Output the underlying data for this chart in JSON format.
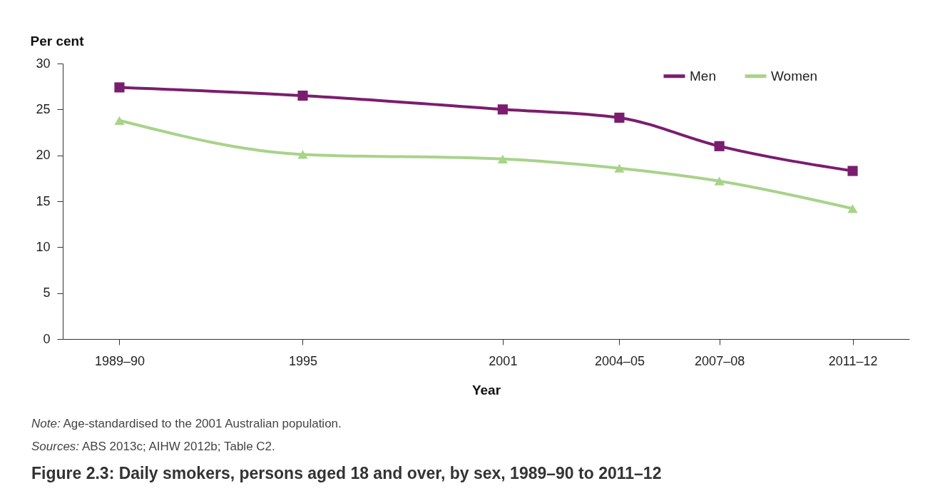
{
  "chart_data": {
    "type": "line",
    "title": "Figure 2.3: Daily smokers, persons aged 18 and over, by sex, 1989–90 to 2011–12",
    "xlabel": "Year",
    "ylabel": "Per cent",
    "x": [
      1989.5,
      1995,
      2001,
      2004.5,
      2007.5,
      2011.5
    ],
    "series": [
      {
        "name": "Men",
        "color": "#7b1d6f",
        "marker": "square",
        "values": [
          27.4,
          26.5,
          25.0,
          24.1,
          21.0,
          18.3
        ]
      },
      {
        "name": "Women",
        "color": "#a8d38a",
        "marker": "triangle",
        "values": [
          23.8,
          20.1,
          19.6,
          18.6,
          17.2,
          14.2
        ]
      }
    ],
    "xlim": [
      1987.8,
      2013.2
    ],
    "xticks": [
      {
        "value": 1989.5,
        "label": "1989–90"
      },
      1995,
      2001,
      {
        "value": 2004.5,
        "label": "2004–05"
      },
      {
        "value": 2007.5,
        "label": "2007–08"
      },
      {
        "value": 2011.5,
        "label": "2011–12"
      }
    ],
    "ylim": [
      0,
      30
    ],
    "yticks": [
      0,
      5,
      10,
      15,
      20,
      25,
      30
    ],
    "grid": false,
    "legend": "top right",
    "line_style": "solid",
    "annotations": [
      "Note: Age-standardised to the 2001 Australian population.",
      "Sources: ABS 2013c; AIHW 2012b; Table C2."
    ]
  }
}
